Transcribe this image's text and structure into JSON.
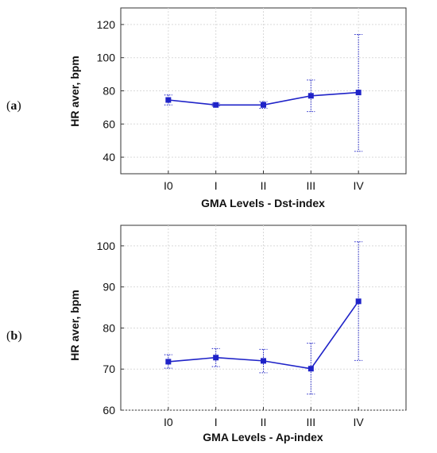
{
  "colors": {
    "series": "#1f23c8",
    "grid": "#d9d9d9",
    "axis": "#333333"
  },
  "chart_data": [
    {
      "type": "line",
      "panel_label_letter": "a",
      "categories": [
        "I0",
        "I",
        "II",
        "III",
        "IV"
      ],
      "series": [
        {
          "values": [
            74.5,
            71.5,
            71.5,
            77,
            79
          ],
          "error_low": [
            71.5,
            70.8,
            69.5,
            67.5,
            43.5
          ],
          "error_high": [
            77.5,
            72.5,
            73.5,
            86.5,
            114
          ]
        }
      ],
      "xlabel": "GMA Levels - Dst-index",
      "ylabel": "HR aver, bpm",
      "ylim": [
        30,
        130
      ],
      "yticks": [
        40,
        60,
        80,
        100,
        120
      ],
      "grid": true
    },
    {
      "type": "line",
      "panel_label_letter": "b",
      "categories": [
        "I0",
        "I",
        "II",
        "III",
        "IV"
      ],
      "series": [
        {
          "values": [
            71.8,
            72.8,
            72,
            70.1,
            86.5
          ],
          "error_low": [
            70.2,
            70.6,
            69.1,
            63.9,
            72.1
          ],
          "error_high": [
            73.5,
            75,
            74.8,
            76.3,
            101
          ]
        }
      ],
      "xlabel": "GMA Levels - Ap-index",
      "ylabel": "HR aver, bpm",
      "ylim": [
        60,
        105
      ],
      "yticks": [
        60,
        70,
        80,
        90,
        100
      ],
      "grid": true
    }
  ]
}
